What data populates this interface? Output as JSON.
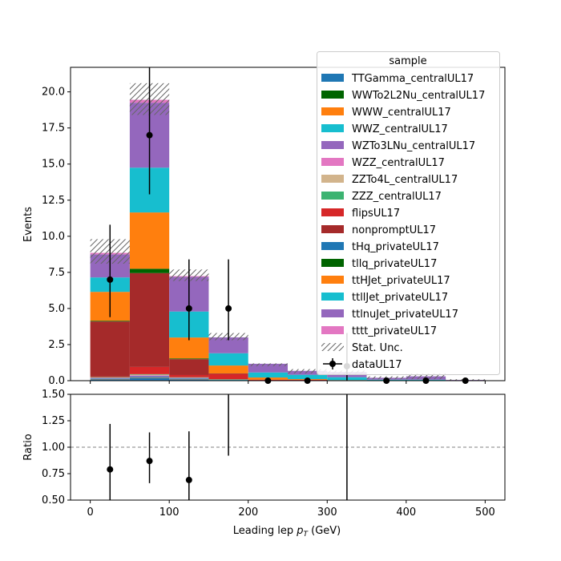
{
  "chart_data": [
    {
      "type": "bar",
      "stacked": true,
      "ylabel": "Events",
      "ylim": [
        0,
        21.7
      ],
      "yticks": [
        "0.0",
        "2.5",
        "5.0",
        "7.5",
        "10.0",
        "12.5",
        "15.0",
        "17.5",
        "20.0"
      ],
      "xlim": [
        -25,
        525
      ],
      "bin_edges": [
        0,
        50,
        100,
        150,
        200,
        250,
        300,
        350,
        400,
        450,
        500
      ],
      "legend_title": "sample",
      "legend_position": "top-right",
      "series": [
        {
          "name": "TTGamma_centralUL17",
          "color": "#1f77b4",
          "values": [
            0.1,
            0.2,
            0.1,
            0.05,
            0.02,
            0.01,
            0,
            0,
            0,
            0
          ]
        },
        {
          "name": "WWTo2L2Nu_centralUL17",
          "color": "#006400",
          "values": [
            0,
            0,
            0,
            0,
            0,
            0,
            0,
            0,
            0,
            0
          ]
        },
        {
          "name": "WWW_centralUL17",
          "color": "#ff7f0e",
          "values": [
            0.02,
            0.02,
            0.02,
            0,
            0,
            0,
            0,
            0,
            0,
            0
          ]
        },
        {
          "name": "WWZ_centralUL17",
          "color": "#17becf",
          "values": [
            0.02,
            0.03,
            0.02,
            0.01,
            0,
            0,
            0,
            0,
            0,
            0
          ]
        },
        {
          "name": "WZTo3LNu_centralUL17",
          "color": "#9467bd",
          "values": [
            0.05,
            0.1,
            0.05,
            0.02,
            0,
            0,
            0,
            0,
            0,
            0
          ]
        },
        {
          "name": "WZZ_centralUL17",
          "color": "#e377c2",
          "values": [
            0.01,
            0.02,
            0.01,
            0,
            0,
            0,
            0,
            0,
            0,
            0
          ]
        },
        {
          "name": "ZZTo4L_centralUL17",
          "color": "#d2b48c",
          "values": [
            0.03,
            0.05,
            0.02,
            0.01,
            0,
            0,
            0,
            0,
            0,
            0
          ]
        },
        {
          "name": "ZZZ_centralUL17",
          "color": "#3cb371",
          "values": [
            0.02,
            0.03,
            0.02,
            0.01,
            0,
            0,
            0,
            0,
            0,
            0
          ]
        },
        {
          "name": "flipsUL17",
          "color": "#d62728",
          "values": [
            0.05,
            0.5,
            0.15,
            0.35,
            0.05,
            0.05,
            0.02,
            0,
            0,
            0
          ]
        },
        {
          "name": "nonpromptUL17",
          "color": "#a52a2a",
          "values": [
            3.8,
            6.5,
            1.1,
            0.05,
            0,
            0,
            0,
            0,
            0,
            0
          ]
        },
        {
          "name": "tHq_privateUL17",
          "color": "#1f77b4",
          "values": [
            0,
            0,
            0,
            0,
            0,
            0,
            0,
            0,
            0,
            0
          ]
        },
        {
          "name": "tllq_privateUL17",
          "color": "#006400",
          "values": [
            0.05,
            0.3,
            0.05,
            0,
            0,
            0,
            0,
            0,
            0,
            0
          ]
        },
        {
          "name": "ttHJet_privateUL17",
          "color": "#ff7f0e",
          "values": [
            2.0,
            3.9,
            1.45,
            0.55,
            0.15,
            0.05,
            0.02,
            0.02,
            0.02,
            0.02
          ]
        },
        {
          "name": "ttllJet_privateUL17",
          "color": "#17becf",
          "values": [
            1.0,
            3.1,
            1.8,
            0.85,
            0.35,
            0.3,
            0.2,
            0.05,
            0.05,
            0
          ]
        },
        {
          "name": "ttlnuJet_privateUL17",
          "color": "#9467bd",
          "values": [
            1.6,
            4.5,
            2.4,
            1.1,
            0.6,
            0.27,
            0.36,
            0.13,
            0.23,
            0.03
          ]
        },
        {
          "name": "tttt_privateUL17",
          "color": "#e377c2",
          "values": [
            0.1,
            0.2,
            0.05,
            0,
            0,
            0,
            0,
            0,
            0,
            0
          ]
        }
      ],
      "stat_unc": {
        "name": "Stat. Unc.",
        "down": [
          8.1,
          18.4,
          6.9,
          2.8,
          1.0,
          0.5,
          0.4,
          0.1,
          0.1,
          0
        ],
        "up": [
          9.8,
          20.6,
          7.7,
          3.3,
          1.2,
          0.8,
          0.7,
          0.3,
          0.5,
          0.1
        ]
      },
      "data": {
        "name": "dataUL17",
        "x": [
          25,
          75,
          125,
          175,
          225,
          275,
          325,
          375,
          425,
          475
        ],
        "y": [
          7,
          17,
          5,
          5,
          0,
          0,
          1,
          0,
          0,
          0
        ],
        "err_lo": [
          2.6,
          4.1,
          2.2,
          2.2,
          0,
          0,
          1,
          0,
          0,
          0
        ],
        "err_hi": [
          3.8,
          5.2,
          3.4,
          3.4,
          0,
          0,
          2.3,
          0,
          0,
          0
        ]
      }
    },
    {
      "type": "scatter",
      "ylabel": "Ratio",
      "xlabel": "Leading lep $p_T$ (GeV)",
      "xlabel_text": "Leading lep ",
      "xlabel_sub": "T",
      "xlabel_unit": " (GeV)",
      "ylim": [
        0.5,
        1.5
      ],
      "xlim": [
        -25,
        525
      ],
      "yticks": [
        "0.50",
        "0.75",
        "1.00",
        "1.25",
        "1.50"
      ],
      "xticks": [
        "0",
        "100",
        "200",
        "300",
        "400",
        "500"
      ],
      "reference_line": 1.0,
      "points": {
        "x": [
          25,
          75,
          125,
          175,
          325
        ],
        "y": [
          0.79,
          0.87,
          0.69,
          null,
          null
        ],
        "err_lo": [
          0.29,
          0.21,
          0.3,
          0,
          0
        ],
        "err_hi": [
          0.43,
          0.27,
          0.46,
          0,
          0
        ],
        "lo_edge": [
          null,
          null,
          null,
          0.92,
          0.5
        ],
        "hi_edge": [
          null,
          null,
          null,
          1.5,
          1.5
        ]
      }
    }
  ]
}
